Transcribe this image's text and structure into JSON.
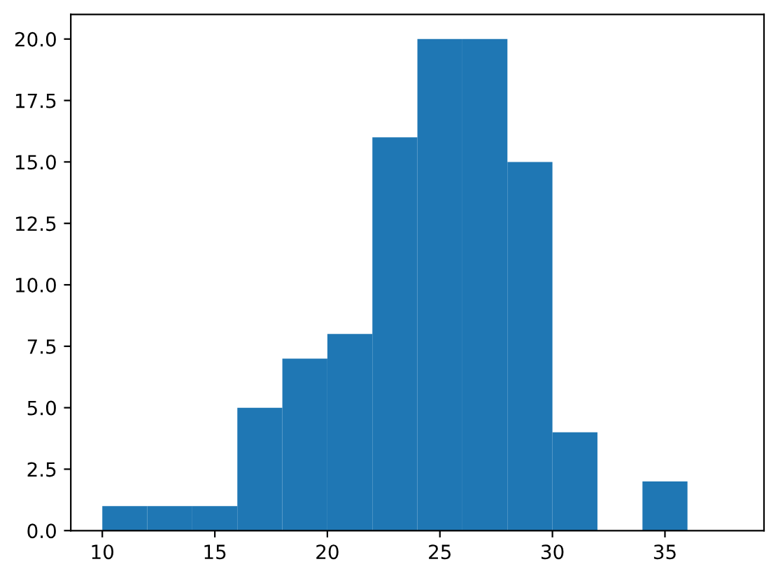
{
  "chart_data": {
    "type": "histogram",
    "bins": [
      10,
      12,
      14,
      16,
      18,
      20,
      22,
      24,
      26,
      28,
      30,
      32,
      34,
      36,
      38
    ],
    "values": [
      1,
      1,
      1,
      5,
      7,
      8,
      16,
      20,
      20,
      15,
      4,
      0,
      2,
      0
    ],
    "color": "#1f77b4",
    "xlim": [
      8.6,
      39.4
    ],
    "xticks": [
      10,
      15,
      20,
      25,
      30,
      35
    ],
    "ylim": [
      0,
      21
    ],
    "yticks": [
      {
        "value": 0,
        "label": "0.0"
      },
      {
        "value": 2.5,
        "label": "2.5"
      },
      {
        "value": 5,
        "label": "5.0"
      },
      {
        "value": 7.5,
        "label": "7.5"
      },
      {
        "value": 10,
        "label": "10.0"
      },
      {
        "value": 12.5,
        "label": "12.5"
      },
      {
        "value": 15,
        "label": "15.0"
      },
      {
        "value": 17.5,
        "label": "17.5"
      },
      {
        "value": 20,
        "label": "20.0"
      }
    ],
    "grid": false,
    "legend": false
  }
}
